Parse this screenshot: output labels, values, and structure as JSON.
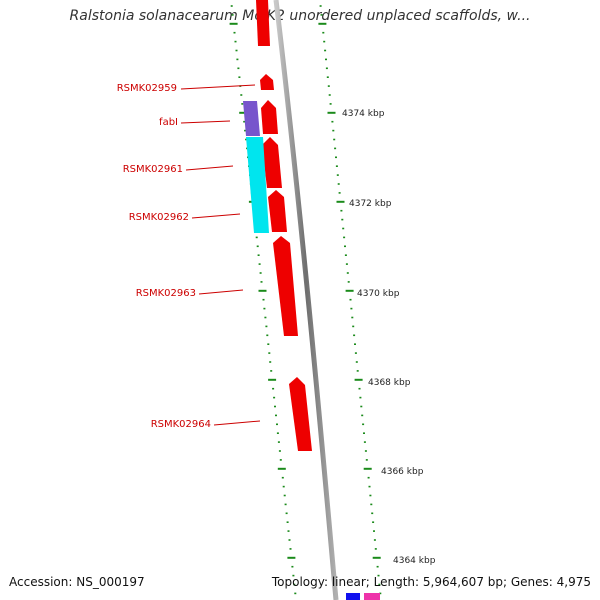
{
  "title": "Ralstonia solanacearum MolK2 unordered unplaced scaffolds, w...",
  "footer": {
    "accession": "Accession: NS_000197",
    "summary": "Topology: linear; Length: 5,964,607 bp; Genes: 4,975"
  },
  "colors": {
    "forward_gene": "#ee0000",
    "reverse_gene_purple": "#7755cc",
    "reverse_gene_cyan": "#00e5ee",
    "backbone": "#909090",
    "tick": "#1a8a1a",
    "label_red": "#cc0000",
    "bottom_blue": "#1111ee",
    "bottom_pink": "#ee33aa"
  },
  "genes": [
    {
      "label": "",
      "strand": "forward"
    },
    {
      "label": "RSMK02959",
      "strand": "forward"
    },
    {
      "label": "fabI",
      "strand": "forward"
    },
    {
      "label": "",
      "strand": "reverse"
    },
    {
      "label": "RSMK02961",
      "strand": "forward"
    },
    {
      "label": "",
      "strand": "reverse"
    },
    {
      "label": "RSMK02962",
      "strand": "forward"
    },
    {
      "label": "RSMK02963",
      "strand": "forward"
    },
    {
      "label": "RSMK02964",
      "strand": "forward"
    }
  ],
  "scale_labels": [
    "4374 kbp",
    "4372 kbp",
    "4370 kbp",
    "4368 kbp",
    "4366 kbp",
    "4364 kbp"
  ]
}
